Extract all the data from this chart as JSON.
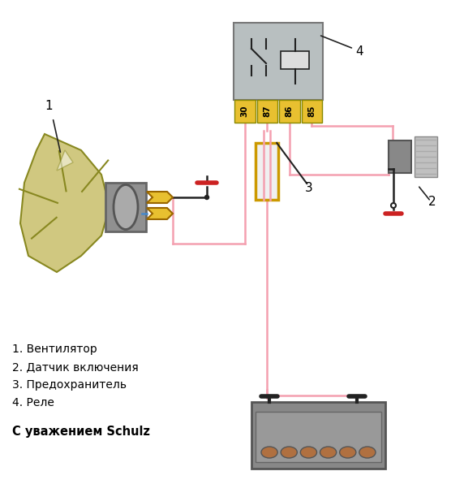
{
  "legend_items": [
    "1. Вентилятор",
    "2. Датчик включения",
    "3. Предохранитель",
    "4. Реле"
  ],
  "footer": "С уважением Schulz",
  "relay_pins": [
    "30",
    "87",
    "86",
    "85"
  ],
  "bg_color": "#ffffff",
  "pink_wire": "#f4a0b0",
  "yellow_color": "#e8c030",
  "relay_body_color": "#b8bfc0",
  "relay_pin_color": "#e8c030",
  "red_mark_color": "#cc2222",
  "black_wire": "#222222",
  "blue_wire": "#4488cc",
  "fan_blade_color": "#c8b840",
  "fan_blade_edge": "#888820",
  "fan_shroud_color": "#d0c880",
  "motor_color": "#909090",
  "sensor_body_color": "#909090",
  "sensor_thread_color": "#c0c0c0",
  "battery_color": "#909090",
  "battery_cell_color": "#b07040"
}
